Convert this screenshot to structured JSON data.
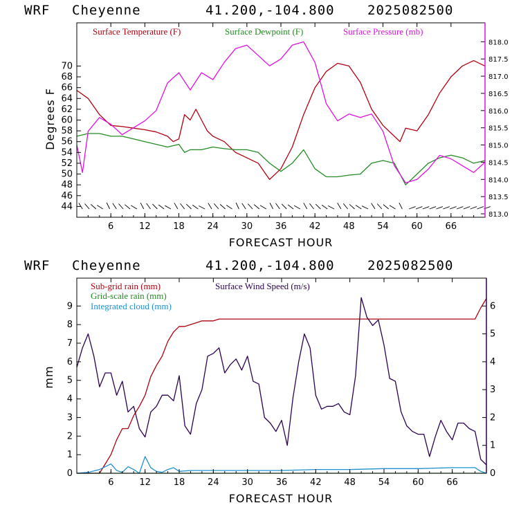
{
  "top": {
    "header": {
      "model": "WRF",
      "station": "Cheyenne",
      "coords": "41.200,-104.800",
      "init": "2025082500"
    },
    "ylabel": "Degrees F",
    "xlabel": "FORECAST HOUR",
    "legend": [
      {
        "label": "Surface Temperature (F)",
        "color": "#b0000f"
      },
      {
        "label": "Surface Dewpoint (F)",
        "color": "#228b22"
      },
      {
        "label": "Surface Pressure (mb)",
        "color": "#e010e0"
      }
    ],
    "right_ticks": [
      "813.0",
      "813.5",
      "814.0",
      "814.5",
      "815.0",
      "815.5",
      "816.0",
      "816.5",
      "817.0",
      "817.5",
      "818.0"
    ]
  },
  "bottom": {
    "header": {
      "model": "WRF",
      "station": "Cheyenne",
      "coords": "41.200,-104.800",
      "init": "2025082500"
    },
    "ylabel": "mm",
    "xlabel": "FORECAST HOUR",
    "legend": [
      {
        "label": "Sub-grid rain (mm)",
        "color": "#b0000f"
      },
      {
        "label": "Surface Wind Speed (m/s)",
        "color": "#2a0050"
      },
      {
        "label": "Grid-scale rain (mm)",
        "color": "#228b22"
      },
      {
        "label": "Integrated cloud (mm)",
        "color": "#1e90d0"
      }
    ]
  },
  "chart_data": [
    {
      "type": "line",
      "xlim": [
        0,
        72
      ],
      "xticks": [
        6,
        12,
        18,
        24,
        30,
        36,
        42,
        48,
        54,
        60,
        66
      ],
      "ylim": [
        42,
        78
      ],
      "yticks": [
        44,
        46,
        48,
        50,
        52,
        54,
        56,
        58,
        60,
        62,
        64,
        66,
        68,
        70
      ],
      "y2lim": [
        812.9,
        818.55
      ],
      "y2ticks": [
        813.0,
        813.5,
        814.0,
        814.5,
        815.0,
        815.5,
        816.0,
        816.5,
        817.0,
        817.5,
        818.0
      ],
      "series": [
        {
          "name": "Surface Temperature (F)",
          "axis": "left",
          "color": "#b0000f",
          "x": [
            0,
            2,
            4,
            6,
            8,
            10,
            12,
            14,
            16,
            17,
            18,
            19,
            20,
            21,
            22,
            23,
            24,
            26,
            28,
            30,
            32,
            34,
            36,
            38,
            40,
            42,
            44,
            46,
            48,
            50,
            52,
            54,
            56,
            57,
            58,
            60,
            62,
            64,
            66,
            68,
            70,
            72
          ],
          "y": [
            65.5,
            64,
            61,
            59,
            58.8,
            58.5,
            58.2,
            57.8,
            57,
            56,
            56.5,
            61,
            60,
            62,
            60,
            58,
            57,
            56,
            54,
            53,
            52,
            49,
            51,
            55,
            61,
            66,
            69,
            70.5,
            70,
            67,
            62,
            59,
            57,
            56,
            58.5,
            58,
            61,
            65,
            68,
            70,
            71,
            70
          ]
        },
        {
          "name": "Surface Dewpoint (F)",
          "axis": "left",
          "color": "#228b22",
          "x": [
            0,
            2,
            4,
            6,
            8,
            10,
            12,
            14,
            16,
            18,
            19,
            20,
            22,
            24,
            26,
            28,
            30,
            32,
            34,
            36,
            38,
            40,
            42,
            44,
            46,
            48,
            50,
            52,
            54,
            56,
            58,
            60,
            62,
            64,
            66,
            68,
            70,
            72
          ],
          "y": [
            57,
            57.5,
            57.5,
            57,
            57,
            56.5,
            56,
            55.5,
            55,
            55.5,
            54,
            54.5,
            54.5,
            55,
            54.7,
            54.5,
            54.5,
            54,
            52,
            50.5,
            52,
            54.5,
            51,
            49.5,
            49.5,
            49.8,
            50,
            52,
            52.5,
            52,
            48,
            50,
            52,
            53,
            53.5,
            53,
            52,
            52.5
          ]
        },
        {
          "name": "Surface Pressure (mb)",
          "axis": "right",
          "color": "#e010e0",
          "x": [
            0,
            1,
            2,
            3,
            4,
            6,
            8,
            10,
            12,
            14,
            16,
            18,
            20,
            22,
            24,
            26,
            28,
            30,
            32,
            34,
            36,
            38,
            40,
            42,
            44,
            46,
            48,
            50,
            52,
            54,
            56,
            58,
            60,
            62,
            64,
            66,
            68,
            70,
            72
          ],
          "y": [
            815,
            814.2,
            815.4,
            815.6,
            815.8,
            815.6,
            815.3,
            815.5,
            815.7,
            816,
            816.8,
            817.1,
            816.6,
            817.1,
            816.9,
            817.4,
            817.8,
            817.9,
            817.6,
            817.3,
            817.5,
            817.9,
            818,
            817.4,
            816.2,
            815.7,
            815.9,
            815.8,
            815.9,
            815.4,
            814.4,
            813.9,
            814,
            814.3,
            814.7,
            814.6,
            814.4,
            814.2,
            814.5
          ]
        }
      ]
    },
    {
      "type": "line",
      "xlim": [
        0,
        72
      ],
      "xticks": [
        6,
        12,
        18,
        24,
        30,
        36,
        42,
        48,
        54,
        60,
        66
      ],
      "ylim": [
        0,
        10.5
      ],
      "yticks": [
        0,
        1,
        2,
        3,
        4,
        5,
        6,
        7,
        8,
        9
      ],
      "y2lim": [
        0,
        7
      ],
      "y2ticks": [
        0,
        1,
        2,
        3,
        4,
        5,
        6
      ],
      "series": [
        {
          "name": "Sub-grid rain (mm)",
          "axis": "left",
          "color": "#b0000f",
          "x": [
            0,
            4,
            5,
            6,
            7,
            8,
            9,
            10,
            11,
            12,
            13,
            14,
            15,
            16,
            17,
            18,
            19,
            20,
            21,
            22,
            24,
            25,
            50,
            60,
            70,
            71,
            72
          ],
          "y": [
            0,
            0,
            0.5,
            1,
            1.8,
            2.4,
            2.4,
            3.1,
            3.6,
            4.2,
            5.2,
            5.8,
            6.3,
            7.1,
            7.6,
            7.9,
            7.9,
            8,
            8.1,
            8.2,
            8.2,
            8.3,
            8.3,
            8.3,
            8.3,
            8.9,
            9.4
          ]
        },
        {
          "name": "Surface Wind Speed (m/s)",
          "axis": "right",
          "color": "#2a0050",
          "x": [
            0,
            1,
            2,
            3,
            4,
            5,
            6,
            7,
            8,
            9,
            10,
            11,
            12,
            13,
            14,
            15,
            16,
            17,
            18,
            19,
            20,
            21,
            22,
            23,
            24,
            25,
            26,
            27,
            28,
            29,
            30,
            31,
            32,
            33,
            34,
            35,
            36,
            37,
            38,
            39,
            40,
            41,
            42,
            43,
            44,
            45,
            46,
            47,
            48,
            49,
            50,
            51,
            52,
            53,
            54,
            55,
            56,
            57,
            58,
            59,
            60,
            61,
            62,
            63,
            64,
            65,
            66,
            67,
            68,
            69,
            70,
            71,
            72
          ],
          "y": [
            3.8,
            4.5,
            5,
            4.2,
            3.1,
            3.6,
            3.6,
            2.8,
            3.3,
            2.2,
            2.4,
            1.6,
            1.3,
            2.2,
            2.4,
            2.8,
            2.8,
            2.6,
            3.5,
            1.7,
            1.4,
            2.5,
            3,
            4.2,
            4.3,
            4.5,
            3.6,
            3.9,
            4.1,
            3.7,
            4.2,
            3.3,
            3.2,
            2,
            1.8,
            1.5,
            1.9,
            1,
            2.7,
            4,
            5,
            4.5,
            2.8,
            2.3,
            2.4,
            2.4,
            2.5,
            2.2,
            2.1,
            3.5,
            6.3,
            5.6,
            5.3,
            5.5,
            4.6,
            3.4,
            3.3,
            2.2,
            1.7,
            1.5,
            1.4,
            1.4,
            0.6,
            1.3,
            1.9,
            1.5,
            1.2,
            1.8,
            1.8,
            1.6,
            1.5,
            0.5,
            0.3
          ]
        },
        {
          "name": "Grid-scale rain (mm)",
          "axis": "left",
          "color": "#228b22",
          "x": [
            0,
            72
          ],
          "y": [
            0,
            0
          ]
        },
        {
          "name": "Integrated cloud (mm)",
          "axis": "left",
          "color": "#1e90d0",
          "x": [
            0,
            2,
            4,
            5,
            6,
            7,
            8,
            9,
            10,
            11,
            12,
            13,
            14,
            15,
            16,
            17,
            18,
            20,
            24,
            30,
            36,
            42,
            48,
            54,
            60,
            66,
            70,
            71,
            72
          ],
          "y": [
            0,
            0.05,
            0.2,
            0.35,
            0.5,
            0.15,
            0.05,
            0.35,
            0.2,
            0,
            0.9,
            0.3,
            0.1,
            0.05,
            0.2,
            0.3,
            0.1,
            0.15,
            0.15,
            0.15,
            0.15,
            0.2,
            0.2,
            0.25,
            0.25,
            0.3,
            0.3,
            0.1,
            0
          ]
        }
      ]
    }
  ]
}
